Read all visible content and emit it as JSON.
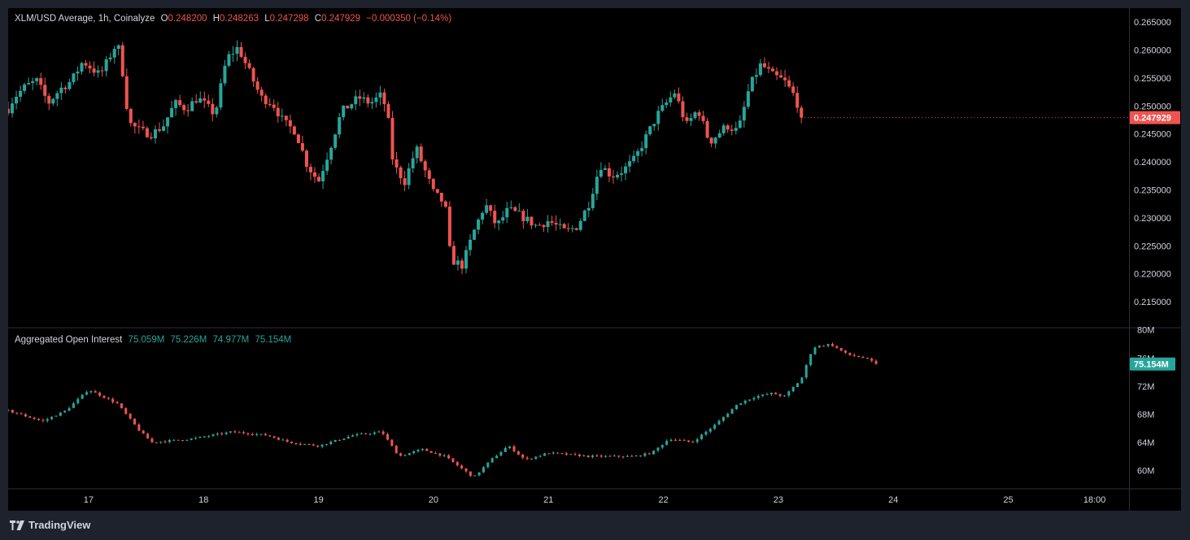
{
  "main_legend": {
    "title": "XLM/USD Average, 1h, Coinalyze",
    "o_label": "O",
    "o_value": "0.248200",
    "h_label": "H",
    "h_value": "0.248263",
    "l_label": "L",
    "l_value": "0.247298",
    "c_label": "C",
    "c_value": "0.247929",
    "change": "−0.000350 (−0.14%)"
  },
  "oi_legend": {
    "title": "Aggregated Open Interest",
    "v1": "75.059M",
    "v2": "75.226M",
    "v3": "74.977M",
    "v4": "75.154M"
  },
  "brand": {
    "name": "TradingView"
  },
  "colors": {
    "up": "#26a69a",
    "down": "#ef5350",
    "background": "#000000",
    "frame": "#1e222d",
    "text": "#d1d4dc"
  },
  "chart_data": [
    {
      "type": "candlestick",
      "name": "XLM/USD Average, 1h, Coinalyze",
      "ylim": [
        0.2105,
        0.2675
      ],
      "y_ticks": [
        "0.265000",
        "0.260000",
        "0.255000",
        "0.250000",
        "0.245000",
        "0.240000",
        "0.235000",
        "0.230000",
        "0.225000",
        "0.220000",
        "0.215000"
      ],
      "last_price_label": "0.247929",
      "last_price": 0.247929,
      "x_ticks": [
        "17",
        "18",
        "19",
        "20",
        "21",
        "22",
        "23",
        "24",
        "25",
        "18:00"
      ],
      "x_tick_positions": [
        1,
        2,
        3,
        4,
        5,
        6,
        7,
        8,
        9,
        9.75
      ],
      "xlim": [
        0.3,
        10.05
      ],
      "close_path": [
        [
          0.3,
          0.2495
        ],
        [
          0.35,
          0.2515
        ],
        [
          0.45,
          0.2535
        ],
        [
          0.55,
          0.2545
        ],
        [
          0.65,
          0.2505
        ],
        [
          0.75,
          0.253
        ],
        [
          0.85,
          0.2545
        ],
        [
          0.95,
          0.258
        ],
        [
          1.1,
          0.2555
        ],
        [
          1.25,
          0.2615
        ],
        [
          1.3,
          0.2555
        ],
        [
          1.35,
          0.247
        ],
        [
          1.45,
          0.2455
        ],
        [
          1.55,
          0.245
        ],
        [
          1.65,
          0.2465
        ],
        [
          1.75,
          0.2505
        ],
        [
          1.85,
          0.2495
        ],
        [
          1.95,
          0.2515
        ],
        [
          2.1,
          0.2485
        ],
        [
          2.2,
          0.2585
        ],
        [
          2.3,
          0.2605
        ],
        [
          2.4,
          0.256
        ],
        [
          2.5,
          0.2515
        ],
        [
          2.6,
          0.2505
        ],
        [
          2.7,
          0.247
        ],
        [
          2.8,
          0.2455
        ],
        [
          2.9,
          0.2395
        ],
        [
          3.0,
          0.2365
        ],
        [
          3.1,
          0.2425
        ],
        [
          3.2,
          0.249
        ],
        [
          3.35,
          0.2515
        ],
        [
          3.45,
          0.2505
        ],
        [
          3.55,
          0.252
        ],
        [
          3.6,
          0.2485
        ],
        [
          3.65,
          0.2395
        ],
        [
          3.75,
          0.2365
        ],
        [
          3.85,
          0.2425
        ],
        [
          4.0,
          0.2345
        ],
        [
          4.1,
          0.2325
        ],
        [
          4.15,
          0.2225
        ],
        [
          4.25,
          0.2215
        ],
        [
          4.35,
          0.2275
        ],
        [
          4.45,
          0.2325
        ],
        [
          4.55,
          0.2285
        ],
        [
          4.65,
          0.2315
        ],
        [
          4.75,
          0.2305
        ],
        [
          4.9,
          0.2285
        ],
        [
          5.0,
          0.2295
        ],
        [
          5.15,
          0.2275
        ],
        [
          5.25,
          0.2285
        ],
        [
          5.35,
          0.2325
        ],
        [
          5.45,
          0.2395
        ],
        [
          5.55,
          0.2375
        ],
        [
          5.65,
          0.2385
        ],
        [
          5.75,
          0.2405
        ],
        [
          5.85,
          0.2445
        ],
        [
          5.95,
          0.2485
        ],
        [
          6.1,
          0.2525
        ],
        [
          6.2,
          0.2465
        ],
        [
          6.3,
          0.2495
        ],
        [
          6.4,
          0.2435
        ],
        [
          6.55,
          0.2465
        ],
        [
          6.65,
          0.2455
        ],
        [
          6.75,
          0.2535
        ],
        [
          6.85,
          0.2575
        ],
        [
          6.95,
          0.2555
        ],
        [
          7.05,
          0.2545
        ],
        [
          7.15,
          0.2515
        ],
        [
          7.2,
          0.2479
        ]
      ]
    },
    {
      "type": "candlestick",
      "name": "Aggregated Open Interest",
      "ylim": [
        57.5,
        80.2
      ],
      "y_ticks": [
        "80M",
        "76M",
        "72M",
        "68M",
        "64M",
        "60M"
      ],
      "y_tick_values": [
        80,
        76,
        72,
        68,
        64,
        60
      ],
      "last_value_label": "75.154M",
      "last_value": 75.154,
      "close_path": [
        [
          0.3,
          68.5
        ],
        [
          0.6,
          67.0
        ],
        [
          0.8,
          68.5
        ],
        [
          1.0,
          71.5
        ],
        [
          1.25,
          69.5
        ],
        [
          1.45,
          65.5
        ],
        [
          1.55,
          64.0
        ],
        [
          1.9,
          64.5
        ],
        [
          2.25,
          65.5
        ],
        [
          2.55,
          65.0
        ],
        [
          2.75,
          64.0
        ],
        [
          3.0,
          63.5
        ],
        [
          3.3,
          65.0
        ],
        [
          3.55,
          65.5
        ],
        [
          3.7,
          62.0
        ],
        [
          3.9,
          63.0
        ],
        [
          4.1,
          62.0
        ],
        [
          4.35,
          59.0
        ],
        [
          4.5,
          61.5
        ],
        [
          4.65,
          63.5
        ],
        [
          4.8,
          61.5
        ],
        [
          5.0,
          62.5
        ],
        [
          5.35,
          62.0
        ],
        [
          5.75,
          62.0
        ],
        [
          5.9,
          62.5
        ],
        [
          6.05,
          64.5
        ],
        [
          6.25,
          64.0
        ],
        [
          6.45,
          66.5
        ],
        [
          6.65,
          69.5
        ],
        [
          6.8,
          70.5
        ],
        [
          6.95,
          71.0
        ],
        [
          7.05,
          70.5
        ],
        [
          7.2,
          73.0
        ],
        [
          7.3,
          77.5
        ],
        [
          7.45,
          78.0
        ],
        [
          7.6,
          76.5
        ],
        [
          7.75,
          76.0
        ],
        [
          7.85,
          75.2
        ]
      ]
    }
  ]
}
